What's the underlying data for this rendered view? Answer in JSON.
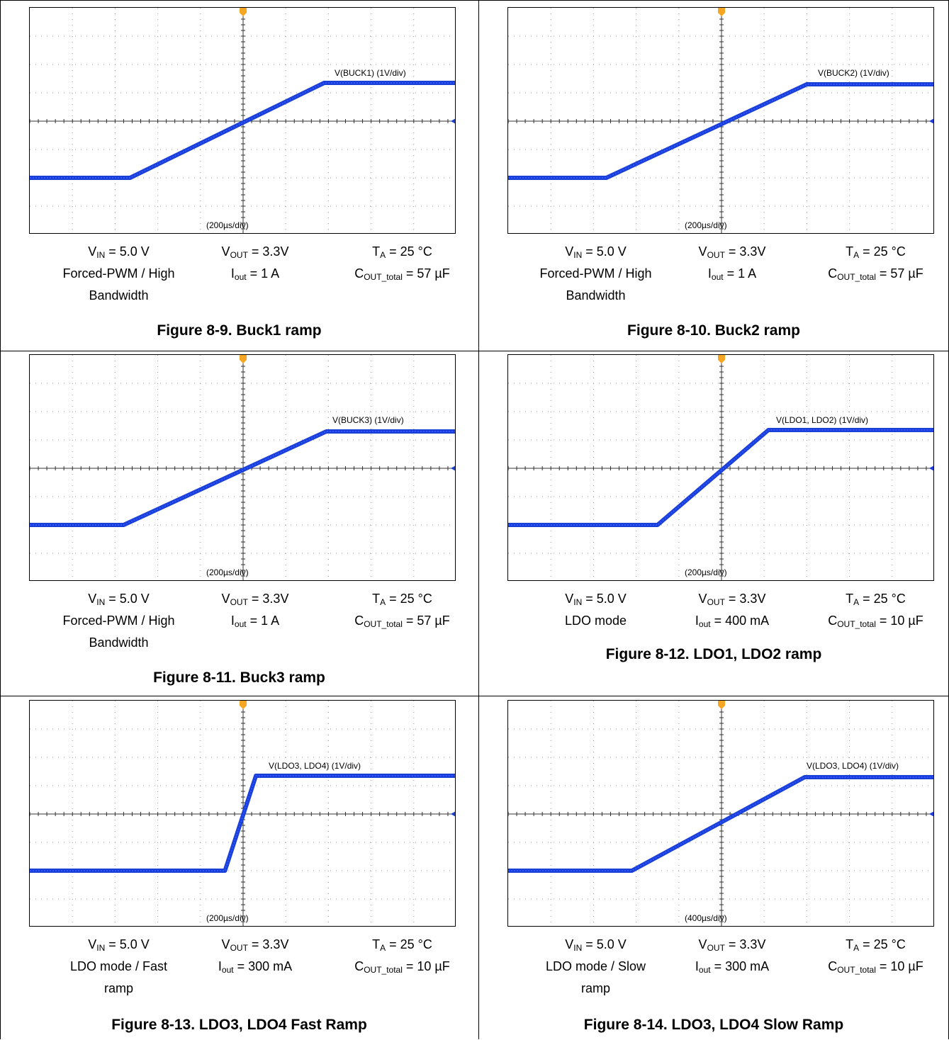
{
  "figures": [
    {
      "caption": "Figure 8-9. Buck1 ramp",
      "cond": {
        "vin_sym": "V",
        "vin_sub": "IN",
        "vin_val": " = 5.0 V",
        "mode": [
          "Forced-PWM / High",
          "Bandwidth"
        ],
        "vout_sym": "V",
        "vout_sub": "OUT",
        "vout_val": " = 3.3V",
        "iout_sym": "I",
        "iout_sub": "out",
        "iout_val": " = 1 A",
        "ta_sym": "T",
        "ta_sub": "A",
        "ta_val": " = 25 °C",
        "cout_sym": "C",
        "cout_sub": "OUT_total",
        "cout_val": " = 57 µF"
      },
      "chart_data": {
        "type": "line",
        "trace_label": "V(BUCK1) (1V/div)",
        "time_label": "(200µs/div)",
        "x_unit": "µs",
        "y_unit": "V",
        "xlim": [
          -1000,
          1000
        ],
        "ylim": [
          -4,
          4
        ],
        "series": [
          {
            "x": [
              -1000,
              -530,
              380,
              1000
            ],
            "y": [
              -2.0,
              -2.0,
              1.35,
              1.35
            ]
          }
        ]
      }
    },
    {
      "caption": "Figure 8-10. Buck2 ramp",
      "cond": {
        "vin_sym": "V",
        "vin_sub": "IN",
        "vin_val": " = 5.0 V",
        "mode": [
          "Forced-PWM / High",
          "Bandwidth"
        ],
        "vout_sym": "V",
        "vout_sub": "OUT",
        "vout_val": " = 3.3V",
        "iout_sym": "I",
        "iout_sub": "out",
        "iout_val": " = 1 A",
        "ta_sym": "T",
        "ta_sub": "A",
        "ta_val": " = 25 °C",
        "cout_sym": "C",
        "cout_sub": "OUT_total",
        "cout_val": " = 57 µF"
      },
      "chart_data": {
        "type": "line",
        "trace_label": "V(BUCK2) (1V/div)",
        "time_label": "(200µs/div)",
        "x_unit": "µs",
        "y_unit": "V",
        "xlim": [
          -1000,
          1000
        ],
        "ylim": [
          -4,
          4
        ],
        "series": [
          {
            "x": [
              -1000,
              -540,
              400,
              1000
            ],
            "y": [
              -2.0,
              -2.0,
              1.3,
              1.3
            ]
          }
        ]
      }
    },
    {
      "caption": "Figure 8-11. Buck3 ramp",
      "cond": {
        "vin_sym": "V",
        "vin_sub": "IN",
        "vin_val": " = 5.0 V",
        "mode": [
          "Forced-PWM / High",
          "Bandwidth"
        ],
        "vout_sym": "V",
        "vout_sub": "OUT",
        "vout_val": " = 3.3V",
        "iout_sym": "I",
        "iout_sub": "out",
        "iout_val": " = 1 A",
        "ta_sym": "T",
        "ta_sub": "A",
        "ta_val": " = 25 °C",
        "cout_sym": "C",
        "cout_sub": "OUT_total",
        "cout_val": " = 57 µF"
      },
      "chart_data": {
        "type": "line",
        "trace_label": "V(BUCK3) (1V/div)",
        "time_label": "(200µs/div)",
        "x_unit": "µs",
        "y_unit": "V",
        "xlim": [
          -1000,
          1000
        ],
        "ylim": [
          -4,
          4
        ],
        "series": [
          {
            "x": [
              -1000,
              -560,
              390,
              1000
            ],
            "y": [
              -2.0,
              -2.0,
              1.3,
              1.3
            ]
          }
        ]
      }
    },
    {
      "caption": "Figure 8-12. LDO1, LDO2 ramp",
      "cond": {
        "vin_sym": "V",
        "vin_sub": "IN",
        "vin_val": " = 5.0 V",
        "mode": [
          "LDO mode"
        ],
        "vout_sym": "V",
        "vout_sub": "OUT",
        "vout_val": " = 3.3V",
        "iout_sym": "I",
        "iout_sub": "out",
        "iout_val": " = 400 mA",
        "ta_sym": "T",
        "ta_sub": "A",
        "ta_val": " = 25 °C",
        "cout_sym": "C",
        "cout_sub": "OUT_total",
        "cout_val": " = 10 µF"
      },
      "chart_data": {
        "type": "line",
        "trace_label": "V(LDO1, LDO2) (1V/div)",
        "time_label": "(200µs/div)",
        "x_unit": "µs",
        "y_unit": "V",
        "xlim": [
          -1000,
          1000
        ],
        "ylim": [
          -4,
          4
        ],
        "series": [
          {
            "x": [
              -1000,
              -300,
              220,
              1000
            ],
            "y": [
              -2.0,
              -2.0,
              1.35,
              1.35
            ]
          }
        ]
      }
    },
    {
      "caption": "Figure 8-13. LDO3, LDO4 Fast Ramp",
      "cond": {
        "vin_sym": "V",
        "vin_sub": "IN",
        "vin_val": " = 5.0 V",
        "mode": [
          "LDO mode / Fast",
          "ramp"
        ],
        "vout_sym": "V",
        "vout_sub": "OUT",
        "vout_val": " = 3.3V",
        "iout_sym": "I",
        "iout_sub": "out",
        "iout_val": " = 300 mA",
        "ta_sym": "T",
        "ta_sub": "A",
        "ta_val": " = 25 °C",
        "cout_sym": "C",
        "cout_sub": "OUT_total",
        "cout_val": " = 10 µF"
      },
      "chart_data": {
        "type": "line",
        "trace_label": "V(LDO3, LDO4) (1V/div)",
        "time_label": "(200µs/div)",
        "x_unit": "µs",
        "y_unit": "V",
        "xlim": [
          -1000,
          1000
        ],
        "ylim": [
          -4,
          4
        ],
        "series": [
          {
            "x": [
              -1000,
              -85,
              60,
              1000
            ],
            "y": [
              -2.0,
              -2.0,
              1.35,
              1.35
            ]
          }
        ]
      }
    },
    {
      "caption": "Figure 8-14. LDO3, LDO4 Slow Ramp",
      "cond": {
        "vin_sym": "V",
        "vin_sub": "IN",
        "vin_val": " = 5.0 V",
        "mode": [
          "LDO mode / Slow",
          "ramp"
        ],
        "vout_sym": "V",
        "vout_sub": "OUT",
        "vout_val": " = 3.3V",
        "iout_sym": "I",
        "iout_sub": "out",
        "iout_val": " = 300 mA",
        "ta_sym": "T",
        "ta_sub": "A",
        "ta_val": " = 25 °C",
        "cout_sym": "C",
        "cout_sub": "OUT_total",
        "cout_val": " = 10 µF"
      },
      "chart_data": {
        "type": "line",
        "trace_label": "V(LDO3, LDO4) (1V/div)",
        "time_label": "(400µs/div)",
        "x_unit": "µs",
        "y_unit": "V",
        "xlim": [
          -2000,
          2000
        ],
        "ylim": [
          -4,
          4
        ],
        "series": [
          {
            "x": [
              -2000,
              -840,
              780,
              2000
            ],
            "y": [
              -2.0,
              -2.0,
              1.3,
              1.3
            ]
          }
        ]
      }
    }
  ]
}
